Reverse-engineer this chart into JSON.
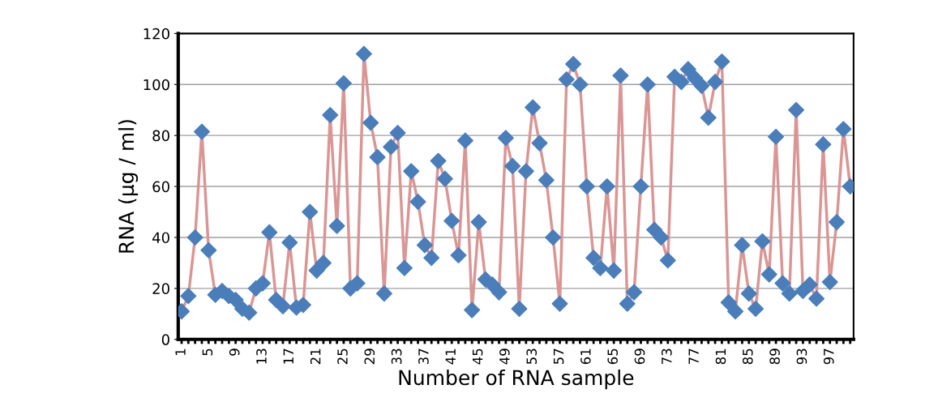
{
  "chart_data": {
    "type": "line",
    "xlabel": "Number of RNA sample",
    "ylabel": "RNA (µg / ml)",
    "categories": [
      "1",
      null,
      null,
      null,
      "5",
      null,
      null,
      null,
      "9",
      null,
      null,
      null,
      "13",
      null,
      null,
      null,
      "17",
      null,
      null,
      null,
      "21",
      null,
      null,
      null,
      "25",
      null,
      null,
      null,
      "29",
      null,
      null,
      null,
      "33",
      null,
      null,
      null,
      "37",
      null,
      null,
      null,
      "41",
      null,
      null,
      null,
      "45",
      null,
      null,
      null,
      "49",
      null,
      null,
      null,
      "53",
      null,
      null,
      null,
      "57",
      null,
      null,
      null,
      "61",
      null,
      null,
      null,
      "65",
      null,
      null,
      null,
      "69",
      null,
      null,
      null,
      "73",
      null,
      null,
      null,
      "77",
      null,
      null,
      null,
      "81",
      null,
      null,
      null,
      "85",
      null,
      null,
      null,
      "89",
      null,
      null,
      null,
      "93",
      null,
      null,
      null,
      "97",
      null,
      null,
      null
    ],
    "series": [
      {
        "color": "#4a7ebb",
        "values": [
          11,
          17,
          40,
          81.5,
          35,
          17.5,
          19,
          17,
          15.5,
          12,
          10.5,
          20,
          22,
          42,
          15.5,
          13,
          38,
          12.5,
          13.5,
          50,
          27,
          30,
          88,
          44.5,
          100.5,
          20,
          22,
          112,
          85,
          71.5,
          18,
          75.5,
          81,
          28,
          66,
          54,
          37,
          32,
          70,
          63,
          46.5,
          33,
          78,
          11.5,
          46,
          23.5,
          21.5,
          18.5,
          79,
          68,
          12,
          66,
          91,
          77,
          62.5,
          40,
          14,
          102,
          108,
          100,
          60,
          32,
          28,
          60,
          27,
          103.5,
          14,
          18.5,
          60,
          100,
          43,
          40,
          31,
          103,
          101,
          106,
          102.5,
          99.5,
          87,
          101,
          109,
          14.5,
          11,
          37,
          18,
          12,
          38.5,
          25.5,
          79.5,
          22,
          18,
          90,
          19,
          21.5,
          16,
          76.5,
          22.5,
          46,
          82.5,
          60
        ]
      }
    ],
    "ylim": [
      0,
      120
    ],
    "yticks": [
      0,
      20,
      40,
      60,
      80,
      100,
      120
    ],
    "grid": "y",
    "marker": "diamond",
    "line_style": "solid"
  }
}
